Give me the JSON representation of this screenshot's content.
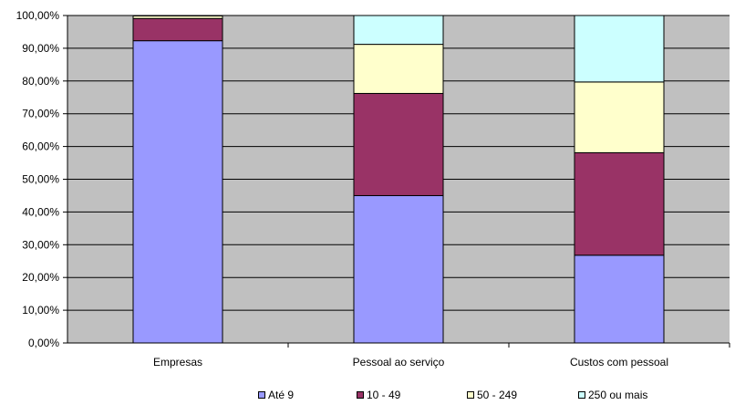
{
  "chart_data": {
    "type": "bar",
    "stacked": true,
    "categories": [
      "Empresas",
      "Pessoal ao serviço",
      "Custos com pessoal"
    ],
    "series": [
      {
        "name": "Até 9",
        "color": "#9999ff",
        "values": [
          92.3,
          45.0,
          26.8
        ]
      },
      {
        "name": "10 - 49",
        "color": "#993366",
        "values": [
          6.8,
          31.2,
          31.3
        ]
      },
      {
        "name": "50 - 249",
        "color": "#ffffcc",
        "values": [
          0.8,
          15.0,
          21.6
        ]
      },
      {
        "name": "250 ou mais",
        "color": "#ccffff",
        "values": [
          0.1,
          8.8,
          20.3
        ]
      }
    ],
    "ylim": [
      0,
      100
    ],
    "yticks": [
      "0,00%",
      "10,00%",
      "20,00%",
      "30,00%",
      "40,00%",
      "50,00%",
      "60,00%",
      "70,00%",
      "80,00%",
      "90,00%",
      "100,00%"
    ],
    "plot_background": "#c0c0c0",
    "grid": true,
    "legend_position": "bottom"
  }
}
